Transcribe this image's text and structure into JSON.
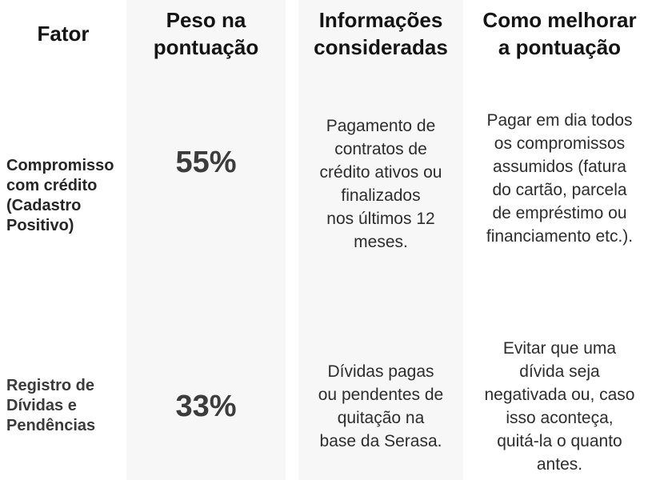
{
  "colors": {
    "page_bg": "#ffffff",
    "column_band_bg": "#f7f7f7",
    "header_text": "#141414",
    "factor_label_text": "#2f2f2f",
    "percent_text": "#3c3c3c",
    "body_text": "#2d2d2d"
  },
  "table": {
    "headers": {
      "fator": "Fator",
      "peso": "Peso na\npontuação",
      "informacoes": "Informações\nconsideradas",
      "melhorar": "Como melhorar\na pontuação"
    },
    "rows": [
      {
        "fator": "Compromisso\ncom crédito\n(Cadastro\nPositivo)",
        "peso": "55%",
        "informacoes": "Pagamento de\ncontratos de\ncrédito ativos ou\nfinalizados\nnos últimos 12\nmeses.",
        "melhorar": "Pagar em dia todos\nos compromissos\nassumidos (fatura\ndo cartão, parcela\nde empréstimo ou\nfinanciamento etc.)."
      },
      {
        "fator": "Registro de\nDívidas e\nPendências",
        "peso": "33%",
        "informacoes": "Dívidas pagas\nou pendentes de\nquitação na\nbase da Serasa.",
        "melhorar": "Evitar que uma\ndívida seja\nnegativada ou, caso\nisso aconteça,\nquitá-la o quanto\nantes."
      }
    ]
  },
  "chart_data": {
    "type": "table",
    "title": "Fatores do score de crédito",
    "columns": [
      "Fator",
      "Peso na pontuação",
      "Informações consideradas",
      "Como melhorar a pontuação"
    ],
    "rows": [
      [
        "Compromisso com crédito (Cadastro Positivo)",
        "55%",
        "Pagamento de contratos de crédito ativos ou finalizados nos últimos 12 meses.",
        "Pagar em dia todos os compromissos assumidos (fatura do cartão, parcela de empréstimo ou financiamento etc.)."
      ],
      [
        "Registro de Dívidas e Pendências",
        "33%",
        "Dívidas pagas ou pendentes de quitação na base da Serasa.",
        "Evitar que uma dívida seja negativada ou, caso isso aconteça, quitá-la o quanto antes."
      ]
    ],
    "weights": [
      55,
      33
    ],
    "layout": {
      "shaded_columns": [
        "Peso na pontuação",
        "Informações consideradas"
      ],
      "grid": false,
      "borders": false
    }
  }
}
